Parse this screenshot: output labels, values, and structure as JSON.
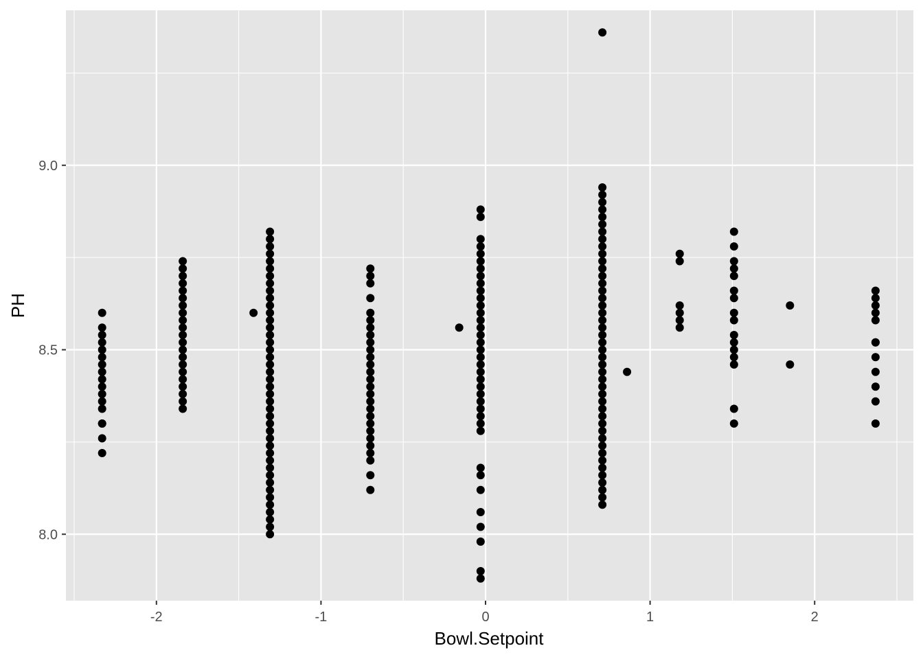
{
  "chart_data": {
    "type": "scatter",
    "title": "",
    "xlabel": "Bowl.Setpoint",
    "ylabel": "PH",
    "xlim": [
      -2.55,
      2.6
    ],
    "ylim": [
      7.82,
      9.42
    ],
    "x_ticks": [
      -2,
      -1,
      0,
      1,
      2
    ],
    "x_tick_labels": [
      "-2",
      "-1",
      "0",
      "1",
      "2"
    ],
    "y_ticks": [
      8.0,
      8.5,
      9.0
    ],
    "y_tick_labels": [
      "8.0",
      "8.5",
      "9.0"
    ],
    "grid": true,
    "legend": "none",
    "colors": {
      "panel": "#e5e5e5",
      "grid": "#ffffff",
      "point": "#000000",
      "tick_text": "#4d4d4d",
      "title_text": "#000000"
    },
    "columns": [
      {
        "x": -2.33,
        "y": [
          8.22,
          8.26,
          8.3,
          8.3,
          8.34,
          8.36,
          8.38,
          8.4,
          8.42,
          8.44,
          8.46,
          8.48,
          8.5,
          8.52,
          8.54,
          8.56,
          8.6
        ]
      },
      {
        "x": -1.84,
        "y": [
          8.34,
          8.36,
          8.38,
          8.4,
          8.42,
          8.44,
          8.46,
          8.48,
          8.5,
          8.52,
          8.54,
          8.56,
          8.58,
          8.6,
          8.62,
          8.64,
          8.66,
          8.68,
          8.7,
          8.72,
          8.74
        ]
      },
      {
        "x": -1.41,
        "y": [
          8.6
        ]
      },
      {
        "x": -1.31,
        "y": [
          8.0,
          8.02,
          8.04,
          8.06,
          8.08,
          8.1,
          8.12,
          8.14,
          8.16,
          8.18,
          8.2,
          8.22,
          8.24,
          8.26,
          8.28,
          8.3,
          8.32,
          8.34,
          8.36,
          8.38,
          8.4,
          8.42,
          8.44,
          8.46,
          8.48,
          8.5,
          8.52,
          8.54,
          8.56,
          8.58,
          8.6,
          8.62,
          8.64,
          8.66,
          8.68,
          8.7,
          8.72,
          8.74,
          8.76,
          8.78,
          8.8,
          8.82
        ]
      },
      {
        "x": -0.7,
        "y": [
          8.12,
          8.16,
          8.2,
          8.22,
          8.24,
          8.26,
          8.28,
          8.3,
          8.32,
          8.34,
          8.36,
          8.38,
          8.4,
          8.42,
          8.44,
          8.46,
          8.48,
          8.5,
          8.52,
          8.54,
          8.56,
          8.58,
          8.6,
          8.64,
          8.68,
          8.7,
          8.72
        ]
      },
      {
        "x": -0.16,
        "y": [
          8.56
        ]
      },
      {
        "x": -0.03,
        "y": [
          7.88,
          7.9,
          7.98,
          8.02,
          8.06,
          8.12,
          8.16,
          8.18,
          8.28,
          8.3,
          8.32,
          8.34,
          8.36,
          8.38,
          8.4,
          8.42,
          8.44,
          8.46,
          8.48,
          8.5,
          8.52,
          8.54,
          8.56,
          8.58,
          8.6,
          8.62,
          8.64,
          8.66,
          8.68,
          8.7,
          8.72,
          8.74,
          8.76,
          8.78,
          8.8,
          8.86,
          8.88
        ]
      },
      {
        "x": 0.71,
        "y": [
          8.08,
          8.1,
          8.12,
          8.14,
          8.16,
          8.18,
          8.2,
          8.22,
          8.24,
          8.26,
          8.28,
          8.3,
          8.32,
          8.34,
          8.36,
          8.38,
          8.4,
          8.42,
          8.44,
          8.46,
          8.48,
          8.5,
          8.52,
          8.54,
          8.56,
          8.58,
          8.6,
          8.62,
          8.64,
          8.66,
          8.68,
          8.7,
          8.72,
          8.74,
          8.76,
          8.78,
          8.8,
          8.82,
          8.84,
          8.86,
          8.88,
          8.9,
          8.92,
          8.94,
          9.36
        ]
      },
      {
        "x": 0.86,
        "y": [
          8.44
        ]
      },
      {
        "x": 1.18,
        "y": [
          8.56,
          8.58,
          8.6,
          8.62,
          8.74,
          8.76
        ]
      },
      {
        "x": 1.51,
        "y": [
          8.3,
          8.34,
          8.46,
          8.48,
          8.5,
          8.52,
          8.54,
          8.58,
          8.6,
          8.64,
          8.66,
          8.7,
          8.72,
          8.74,
          8.78,
          8.82
        ]
      },
      {
        "x": 1.85,
        "y": [
          8.46,
          8.62
        ]
      },
      {
        "x": 2.37,
        "y": [
          8.3,
          8.36,
          8.4,
          8.44,
          8.48,
          8.52,
          8.52,
          8.58,
          8.6,
          8.62,
          8.64,
          8.66
        ]
      }
    ]
  }
}
